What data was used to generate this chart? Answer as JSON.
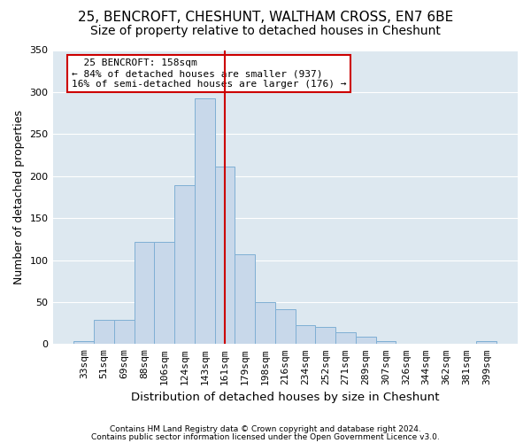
{
  "title1": "25, BENCROFT, CHESHUNT, WALTHAM CROSS, EN7 6BE",
  "title2": "Size of property relative to detached houses in Cheshunt",
  "xlabel": "Distribution of detached houses by size in Cheshunt",
  "ylabel": "Number of detached properties",
  "categories": [
    "33sqm",
    "51sqm",
    "69sqm",
    "88sqm",
    "106sqm",
    "124sqm",
    "143sqm",
    "161sqm",
    "179sqm",
    "198sqm",
    "216sqm",
    "234sqm",
    "252sqm",
    "271sqm",
    "289sqm",
    "307sqm",
    "326sqm",
    "344sqm",
    "362sqm",
    "381sqm",
    "399sqm"
  ],
  "bar_values": [
    4,
    29,
    29,
    122,
    122,
    189,
    293,
    211,
    107,
    50,
    41,
    22,
    20,
    14,
    9,
    3,
    0,
    0,
    0,
    0,
    3
  ],
  "bar_color": "#c8d8ea",
  "bar_edge_color": "#7fafd4",
  "vline_pos": 7.0,
  "annotation_title": "25 BENCROFT: 158sqm",
  "annotation_line1": "← 84% of detached houses are smaller (937)",
  "annotation_line2": "16% of semi-detached houses are larger (176) →",
  "annotation_box_color": "#cc0000",
  "plot_bg_color": "#dde8f0",
  "grid_color": "#ffffff",
  "footer1": "Contains HM Land Registry data © Crown copyright and database right 2024.",
  "footer2": "Contains public sector information licensed under the Open Government Licence v3.0.",
  "ylim": [
    0,
    350
  ],
  "yticks": [
    0,
    50,
    100,
    150,
    200,
    250,
    300,
    350
  ],
  "title1_fontsize": 11,
  "title2_fontsize": 10,
  "xlabel_fontsize": 9.5,
  "ylabel_fontsize": 9,
  "tick_fontsize": 8,
  "footer_fontsize": 6.5
}
